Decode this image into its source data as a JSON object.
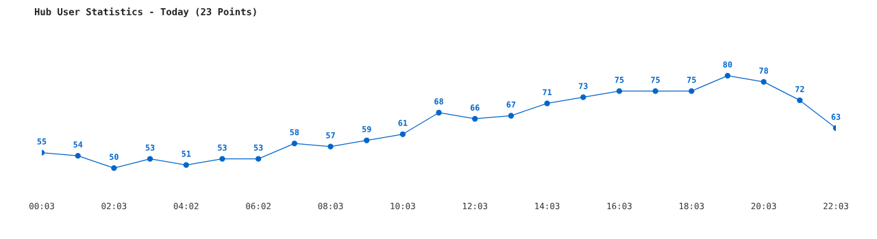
{
  "chart_data": {
    "type": "line",
    "title": "Hub User Statistics - Today (23 Points)",
    "categories": [
      "00:03",
      null,
      "02:03",
      null,
      "04:02",
      null,
      "06:02",
      null,
      "08:03",
      null,
      "10:03",
      null,
      "12:03",
      null,
      "14:03",
      null,
      "16:03",
      null,
      "18:03",
      null,
      "20:03",
      null,
      "22:03"
    ],
    "series": [
      {
        "color": "#0066cc",
        "values": [
          55,
          54,
          50,
          53,
          51,
          53,
          53,
          58,
          57,
          59,
          61,
          68,
          66,
          67,
          71,
          73,
          75,
          75,
          75,
          80,
          78,
          72,
          63
        ]
      }
    ],
    "data_labels": true,
    "marker": "circle",
    "line_style": "solid",
    "grid": false,
    "legend": false,
    "tick_labels": "x"
  }
}
